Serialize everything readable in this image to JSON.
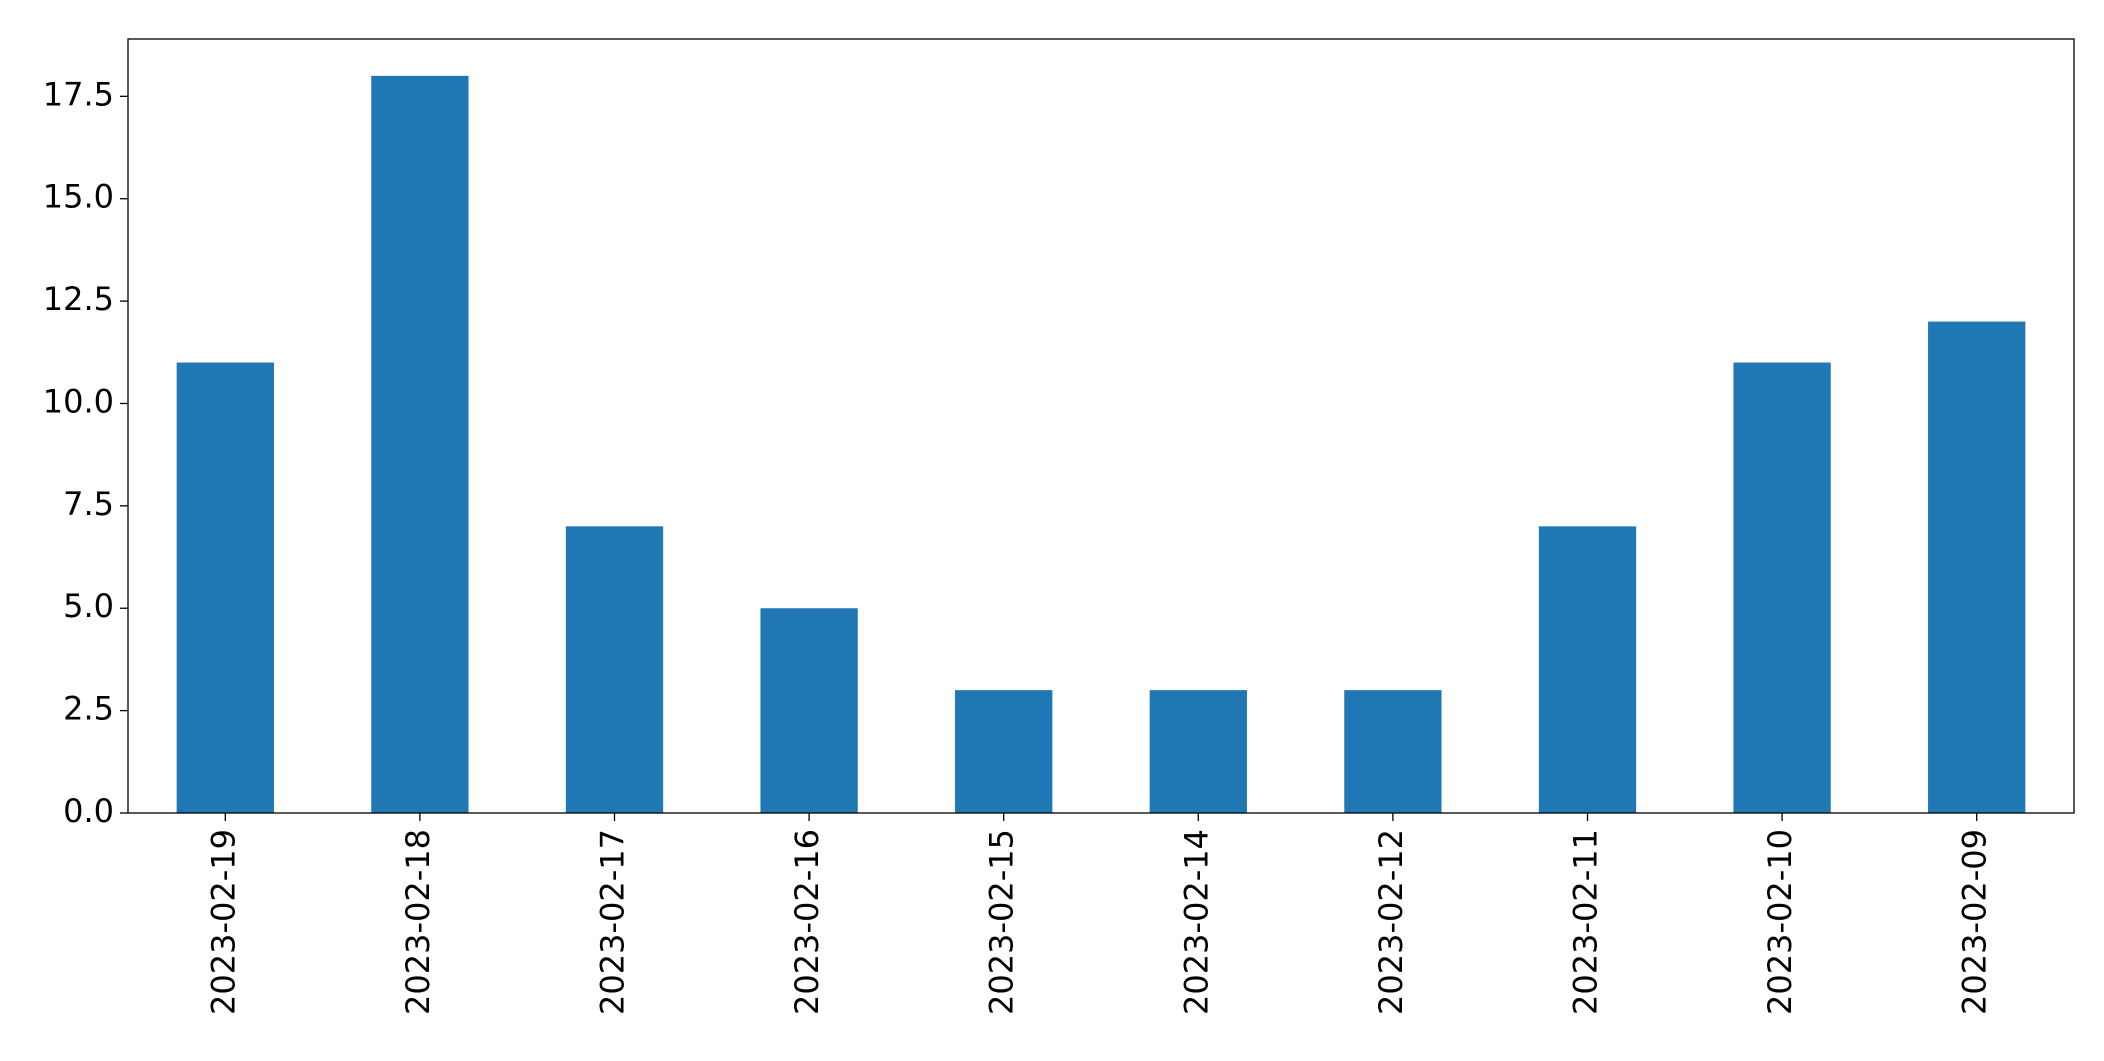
{
  "chart_data": {
    "type": "bar",
    "categories": [
      "2023-02-19",
      "2023-02-18",
      "2023-02-17",
      "2023-02-16",
      "2023-02-15",
      "2023-02-14",
      "2023-02-12",
      "2023-02-11",
      "2023-02-10",
      "2023-02-09"
    ],
    "values": [
      11,
      18,
      7,
      5,
      3,
      3,
      3,
      7,
      11,
      12
    ],
    "color": "#1f77b4",
    "ylim": [
      0,
      18.9
    ],
    "yticks": [
      {
        "value": 0,
        "label": "0.0"
      },
      2.5,
      {
        "value": 5,
        "label": "5.0"
      },
      7.5,
      {
        "value": 10,
        "label": "10.0"
      },
      12.5,
      {
        "value": 15,
        "label": "15.0"
      },
      17.5
    ],
    "grid": false
  }
}
